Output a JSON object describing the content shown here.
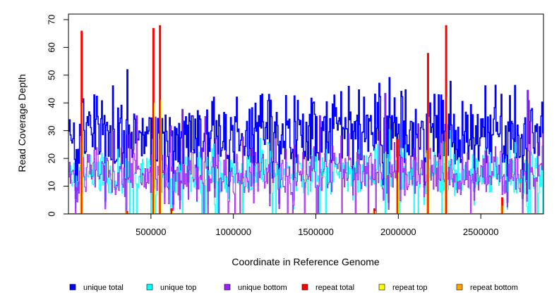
{
  "chart_data": {
    "type": "line",
    "title": "",
    "xlabel": "Coordinate in Reference Genome",
    "ylabel": "Read Coverage Depth",
    "xlim": [
      0,
      2880000
    ],
    "ylim": [
      0,
      72
    ],
    "x_ticks": [
      500000,
      1000000,
      1500000,
      2000000,
      2500000
    ],
    "x_tick_labels": [
      "500000",
      "1000000",
      "1500000",
      "2000000",
      "2500000"
    ],
    "y_ticks": [
      0,
      10,
      20,
      30,
      40,
      50,
      60,
      70
    ],
    "y_tick_labels": [
      "0",
      "10",
      "20",
      "30",
      "40",
      "50",
      "60",
      "70"
    ],
    "grid": false,
    "legend_position": "bottom",
    "series": [
      {
        "name": "unique total",
        "color": "#0000ff"
      },
      {
        "name": "unique top",
        "color": "#00ffff"
      },
      {
        "name": "unique bottom",
        "color": "#a020f0"
      },
      {
        "name": "repeat total",
        "color": "#ff0000"
      },
      {
        "name": "repeat top",
        "color": "#ffff00"
      },
      {
        "name": "repeat bottom",
        "color": "#ffa500"
      }
    ],
    "repeat_spikes": [
      {
        "x": 80000,
        "total": 66,
        "top": 40,
        "bottom": 26
      },
      {
        "x": 515000,
        "total": 67,
        "top": 40,
        "bottom": 27
      },
      {
        "x": 555000,
        "total": 68,
        "top": 41,
        "bottom": 27
      },
      {
        "x": 625000,
        "total": 2,
        "top": 1,
        "bottom": 1
      },
      {
        "x": 355000,
        "total": 1,
        "top": 0,
        "bottom": 1
      },
      {
        "x": 1855000,
        "total": 2,
        "top": 1,
        "bottom": 1
      },
      {
        "x": 1995000,
        "total": 27,
        "top": 15,
        "bottom": 12
      },
      {
        "x": 2180000,
        "total": 58,
        "top": 35,
        "bottom": 23
      },
      {
        "x": 2290000,
        "total": 68,
        "top": 42,
        "bottom": 26
      },
      {
        "x": 2630000,
        "total": 6,
        "top": 3,
        "bottom": 3
      }
    ]
  }
}
